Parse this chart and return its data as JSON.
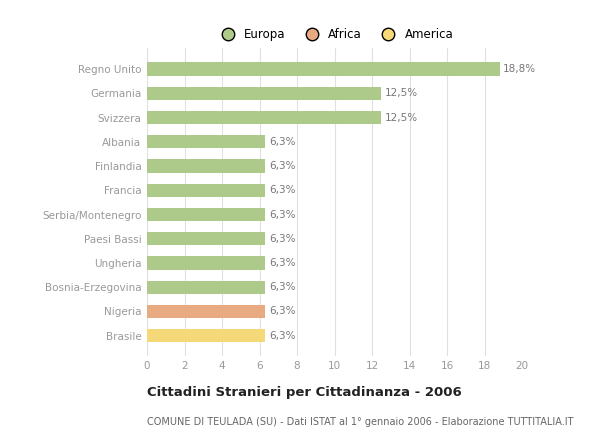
{
  "categories": [
    "Regno Unito",
    "Germania",
    "Svizzera",
    "Albania",
    "Finlandia",
    "Francia",
    "Serbia/Montenegro",
    "Paesi Bassi",
    "Ungheria",
    "Bosnia-Erzegovina",
    "Nigeria",
    "Brasile"
  ],
  "values": [
    18.8,
    12.5,
    12.5,
    6.3,
    6.3,
    6.3,
    6.3,
    6.3,
    6.3,
    6.3,
    6.3,
    6.3
  ],
  "labels": [
    "18,8%",
    "12,5%",
    "12,5%",
    "6,3%",
    "6,3%",
    "6,3%",
    "6,3%",
    "6,3%",
    "6,3%",
    "6,3%",
    "6,3%",
    "6,3%"
  ],
  "colors": [
    "#aeca8a",
    "#aeca8a",
    "#aeca8a",
    "#aeca8a",
    "#aeca8a",
    "#aeca8a",
    "#aeca8a",
    "#aeca8a",
    "#aeca8a",
    "#aeca8a",
    "#e8aa80",
    "#f5d878"
  ],
  "legend": [
    {
      "label": "Europa",
      "color": "#aeca8a"
    },
    {
      "label": "Africa",
      "color": "#e8aa80"
    },
    {
      "label": "America",
      "color": "#f5d878"
    }
  ],
  "title": "Cittadini Stranieri per Cittadinanza - 2006",
  "subtitle": "COMUNE DI TEULADA (SU) - Dati ISTAT al 1° gennaio 2006 - Elaborazione TUTTITALIA.IT",
  "xlim": [
    0,
    20
  ],
  "xticks": [
    0,
    2,
    4,
    6,
    8,
    10,
    12,
    14,
    16,
    18,
    20
  ],
  "background_color": "#ffffff",
  "bar_height": 0.55,
  "grid_color": "#e0e0e0",
  "label_color": "#777777",
  "tick_color": "#999999"
}
